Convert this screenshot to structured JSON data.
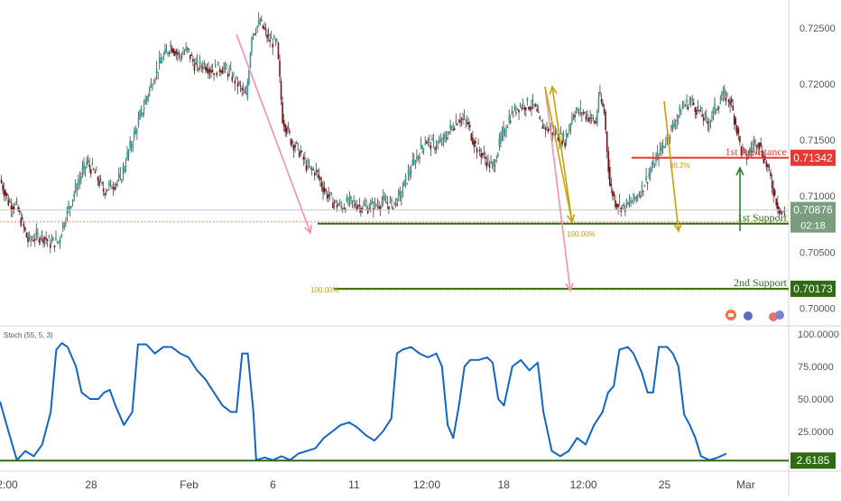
{
  "chart_data": {
    "type": "candlestick",
    "price_panel": {
      "ylim": [
        0.6985,
        0.7275
      ],
      "price_ticks": [
        0.725,
        0.72,
        0.715,
        0.71,
        0.705,
        0.7
      ],
      "price_tick_labels": [
        "0.72500",
        "0.72000",
        "0.71500",
        "0.71000",
        "0.70500",
        "0.70000"
      ],
      "last_price_label": "0.70876",
      "last_price": 0.70876,
      "countdown": "02:18",
      "open_price_label": "0.70754",
      "levels": [
        {
          "label": "1st Resistance",
          "value_label": "0.71342",
          "value": 0.71342,
          "color": "#e53935"
        },
        {
          "label": "1st Support",
          "value_label": "0.70754",
          "value": 0.70754,
          "color": "#2e6b12"
        },
        {
          "label": "2nd Support",
          "value_label": "0.70173",
          "value": 0.70173,
          "color": "#2e6b12"
        }
      ],
      "fib_labels": [
        "100.00%",
        "100.00%",
        "38.2%"
      ],
      "reference_line": 0.7077,
      "series_path": [
        [
          0,
          0.7115
        ],
        [
          6,
          0.7095
        ],
        [
          12,
          0.709
        ],
        [
          16,
          0.7075
        ],
        [
          20,
          0.706
        ],
        [
          24,
          0.7063
        ],
        [
          30,
          0.7065
        ],
        [
          36,
          0.7058
        ],
        [
          42,
          0.706
        ],
        [
          45,
          0.7075
        ],
        [
          55,
          0.711
        ],
        [
          62,
          0.713
        ],
        [
          68,
          0.712
        ],
        [
          74,
          0.7105
        ],
        [
          80,
          0.711
        ],
        [
          86,
          0.7115
        ],
        [
          92,
          0.714
        ],
        [
          100,
          0.717
        ],
        [
          108,
          0.72
        ],
        [
          114,
          0.7218
        ],
        [
          122,
          0.7235
        ],
        [
          128,
          0.7225
        ],
        [
          134,
          0.723
        ],
        [
          140,
          0.7215
        ],
        [
          146,
          0.7218
        ],
        [
          152,
          0.7212
        ],
        [
          158,
          0.7215
        ],
        [
          164,
          0.721
        ],
        [
          170,
          0.72
        ],
        [
          176,
          0.7188
        ],
        [
          180,
          0.7245
        ],
        [
          186,
          0.7255
        ],
        [
          192,
          0.724
        ],
        [
          198,
          0.7235
        ],
        [
          202,
          0.717
        ],
        [
          208,
          0.715
        ],
        [
          214,
          0.714
        ],
        [
          220,
          0.7125
        ],
        [
          226,
          0.7122
        ],
        [
          232,
          0.7105
        ],
        [
          238,
          0.7095
        ],
        [
          244,
          0.709
        ],
        [
          250,
          0.7095
        ],
        [
          256,
          0.7092
        ],
        [
          262,
          0.709
        ],
        [
          268,
          0.7092
        ],
        [
          274,
          0.7095
        ],
        [
          280,
          0.7092
        ],
        [
          286,
          0.71
        ],
        [
          292,
          0.712
        ],
        [
          298,
          0.7135
        ],
        [
          304,
          0.715
        ],
        [
          310,
          0.7145
        ],
        [
          316,
          0.7148
        ],
        [
          322,
          0.716
        ],
        [
          328,
          0.717
        ],
        [
          334,
          0.7165
        ],
        [
          340,
          0.7145
        ],
        [
          346,
          0.7135
        ],
        [
          352,
          0.7125
        ],
        [
          358,
          0.715
        ],
        [
          364,
          0.717
        ],
        [
          370,
          0.718
        ],
        [
          376,
          0.7182
        ],
        [
          382,
          0.718
        ],
        [
          386,
          0.7165
        ],
        [
          392,
          0.716
        ],
        [
          398,
          0.7155
        ],
        [
          404,
          0.715
        ],
        [
          410,
          0.7175
        ],
        [
          416,
          0.7175
        ],
        [
          422,
          0.717
        ],
        [
          426,
          0.7165
        ],
        [
          428,
          0.719
        ],
        [
          432,
          0.7175
        ],
        [
          436,
          0.711
        ],
        [
          440,
          0.7095
        ],
        [
          446,
          0.709
        ],
        [
          452,
          0.7095
        ],
        [
          458,
          0.7105
        ],
        [
          464,
          0.712
        ],
        [
          470,
          0.7135
        ],
        [
          476,
          0.715
        ],
        [
          482,
          0.7165
        ],
        [
          488,
          0.718
        ],
        [
          494,
          0.7185
        ],
        [
          500,
          0.7175
        ],
        [
          506,
          0.7165
        ],
        [
          512,
          0.718
        ],
        [
          518,
          0.719
        ],
        [
          522,
          0.7185
        ],
        [
          526,
          0.7165
        ],
        [
          530,
          0.714
        ],
        [
          534,
          0.7135
        ],
        [
          538,
          0.7145
        ],
        [
          542,
          0.715
        ],
        [
          546,
          0.7135
        ],
        [
          550,
          0.712
        ],
        [
          554,
          0.71
        ],
        [
          558,
          0.7085
        ],
        [
          564,
          0.7082
        ],
        [
          570,
          0.7085
        ]
      ]
    },
    "stoch_panel": {
      "title": "Stoch (55, 5, 3)",
      "ylim": [
        0,
        100
      ],
      "ticks": [
        100,
        75,
        50,
        25
      ],
      "tick_labels": [
        "100.0000",
        "75.0000",
        "50.0000",
        "25.0000"
      ],
      "current_label": "2.6185",
      "current": 2.6185,
      "values": [
        [
          0,
          48
        ],
        [
          6,
          25
        ],
        [
          12,
          3
        ],
        [
          18,
          10
        ],
        [
          24,
          6
        ],
        [
          30,
          15
        ],
        [
          36,
          40
        ],
        [
          40,
          88
        ],
        [
          44,
          93
        ],
        [
          48,
          90
        ],
        [
          54,
          75
        ],
        [
          58,
          55
        ],
        [
          64,
          50
        ],
        [
          70,
          50
        ],
        [
          74,
          55
        ],
        [
          78,
          57
        ],
        [
          82,
          45
        ],
        [
          88,
          30
        ],
        [
          94,
          40
        ],
        [
          98,
          92
        ],
        [
          104,
          92
        ],
        [
          110,
          85
        ],
        [
          116,
          90
        ],
        [
          122,
          90
        ],
        [
          128,
          85
        ],
        [
          134,
          82
        ],
        [
          140,
          72
        ],
        [
          146,
          65
        ],
        [
          152,
          55
        ],
        [
          158,
          45
        ],
        [
          164,
          40
        ],
        [
          168,
          40
        ],
        [
          172,
          85
        ],
        [
          176,
          85
        ],
        [
          180,
          40
        ],
        [
          182,
          3
        ],
        [
          188,
          5
        ],
        [
          194,
          3
        ],
        [
          200,
          6
        ],
        [
          206,
          3
        ],
        [
          212,
          8
        ],
        [
          218,
          10
        ],
        [
          224,
          12
        ],
        [
          230,
          20
        ],
        [
          236,
          25
        ],
        [
          242,
          30
        ],
        [
          248,
          32
        ],
        [
          254,
          28
        ],
        [
          260,
          22
        ],
        [
          266,
          18
        ],
        [
          272,
          25
        ],
        [
          278,
          35
        ],
        [
          282,
          85
        ],
        [
          286,
          88
        ],
        [
          292,
          90
        ],
        [
          298,
          85
        ],
        [
          304,
          82
        ],
        [
          310,
          85
        ],
        [
          314,
          75
        ],
        [
          318,
          30
        ],
        [
          322,
          20
        ],
        [
          326,
          45
        ],
        [
          330,
          75
        ],
        [
          334,
          80
        ],
        [
          340,
          80
        ],
        [
          346,
          82
        ],
        [
          350,
          78
        ],
        [
          354,
          50
        ],
        [
          358,
          45
        ],
        [
          364,
          75
        ],
        [
          370,
          80
        ],
        [
          376,
          72
        ],
        [
          382,
          78
        ],
        [
          386,
          40
        ],
        [
          392,
          10
        ],
        [
          398,
          6
        ],
        [
          404,
          10
        ],
        [
          410,
          20
        ],
        [
          416,
          15
        ],
        [
          422,
          30
        ],
        [
          428,
          40
        ],
        [
          432,
          55
        ],
        [
          436,
          60
        ],
        [
          440,
          88
        ],
        [
          446,
          90
        ],
        [
          450,
          85
        ],
        [
          456,
          70
        ],
        [
          460,
          55
        ],
        [
          464,
          55
        ],
        [
          468,
          90
        ],
        [
          474,
          90
        ],
        [
          478,
          85
        ],
        [
          482,
          75
        ],
        [
          486,
          38
        ],
        [
          490,
          30
        ],
        [
          494,
          20
        ],
        [
          498,
          6
        ],
        [
          504,
          3
        ],
        [
          510,
          5
        ],
        [
          516,
          8
        ]
      ]
    },
    "x_tick_labels": [
      "2:00",
      "28",
      "Feb",
      "6",
      "11",
      "12:00",
      "18",
      "12:00",
      "25",
      "Mar"
    ],
    "x_tick_positions": [
      0,
      60,
      130,
      190,
      248,
      300,
      355,
      412,
      470,
      528
    ],
    "colors": {
      "up": "#26a69a",
      "down": "#7b1416",
      "stoch_line": "#1565c0",
      "fib": "#c8a200",
      "pink_arrow": "#f48fb1",
      "gold_arrow": "#c8a200",
      "green_arrow": "#2e7d32"
    }
  }
}
